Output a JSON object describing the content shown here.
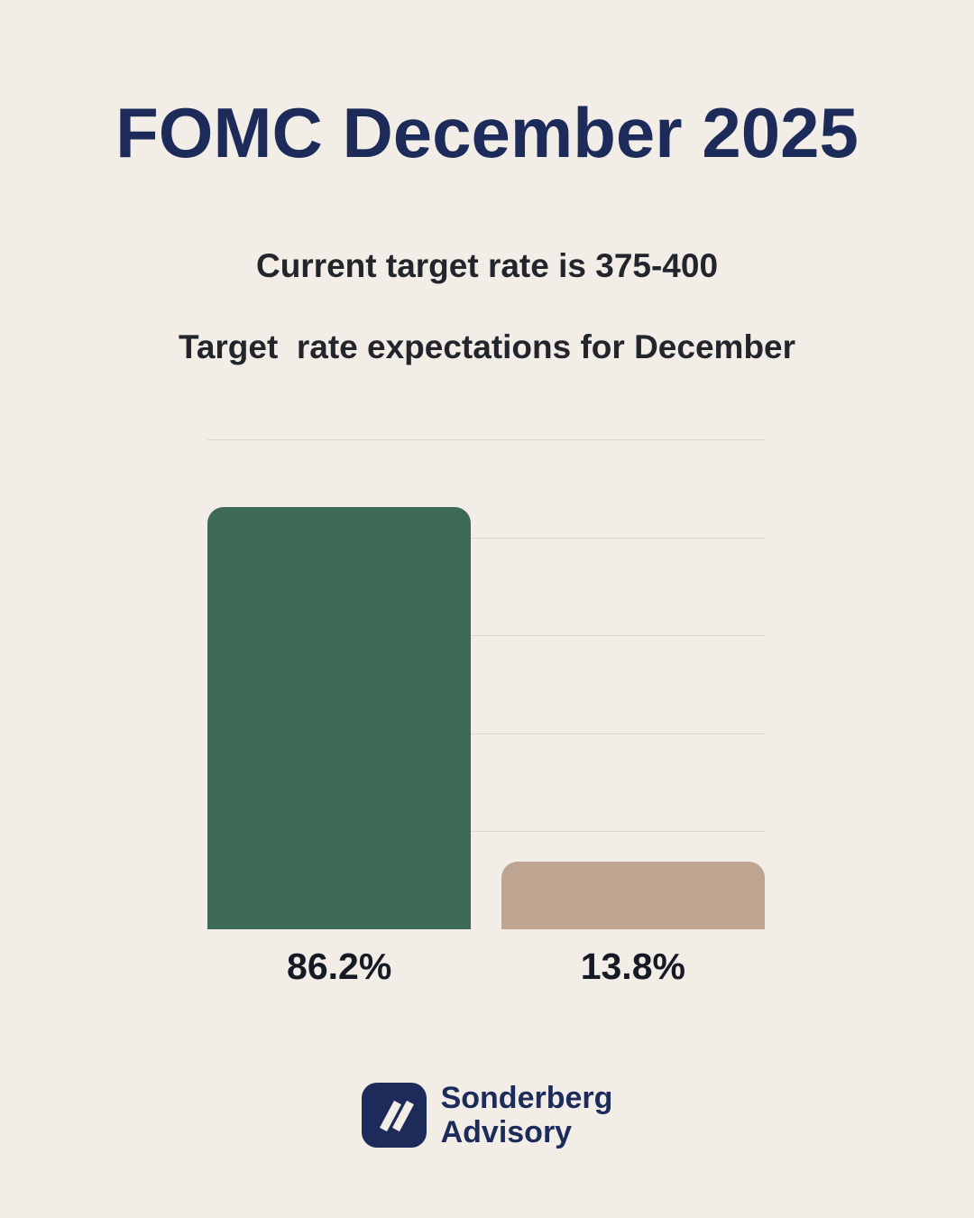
{
  "page": {
    "title": "FOMC December 2025",
    "subtitle_current_rate": "Current target rate is 375-400",
    "subtitle_expectations": "Target  rate expectations for December",
    "colors": {
      "background": "#f2ede6",
      "navy": "#1d2b5a",
      "text": "#22252c",
      "gridline": "#dcd6ce"
    }
  },
  "chart_data": {
    "type": "bar",
    "title": "Target rate expectations for December",
    "values": [
      86.2,
      13.8
    ],
    "labels": [
      "86.2%",
      "13.8%"
    ],
    "colors": [
      "#3d6a57",
      "#bea592"
    ],
    "xlabel": "",
    "ylabel": "",
    "ylim": [
      0,
      100
    ],
    "grid": true,
    "gridline_interval": 20,
    "legend_position": "none"
  },
  "footer": {
    "brand_line1": "Sonderberg",
    "brand_line2": "Advisory",
    "logo_icon": "double-slash-badge",
    "logo_color": "#1d2b5a",
    "logo_slash_color": "#f2ede6"
  }
}
